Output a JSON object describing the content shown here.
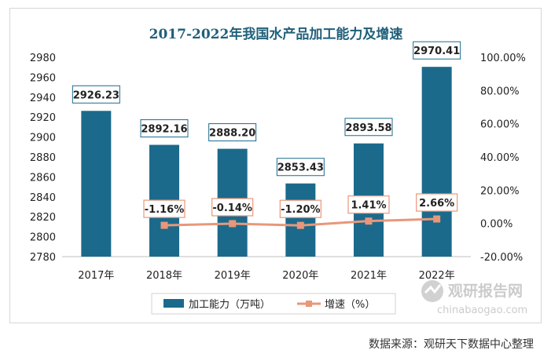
{
  "chart_data": {
    "type": "bar",
    "title": "2017-2022年我国水产品加工能力及增速",
    "categories": [
      "2017年",
      "2018年",
      "2019年",
      "2020年",
      "2021年",
      "2022年"
    ],
    "series": [
      {
        "name": "加工能力（万吨）",
        "type": "bar",
        "axis": "left",
        "values": [
          2926.23,
          2892.16,
          2888.2,
          2853.43,
          2893.58,
          2970.41
        ],
        "labels": [
          "2926.23",
          "2892.16",
          "2888.20",
          "2853.43",
          "2893.58",
          "2970.41"
        ],
        "color": "#1b6a8c"
      },
      {
        "name": "增速（%）",
        "type": "line",
        "axis": "right",
        "values": [
          null,
          -1.16,
          -0.14,
          -1.2,
          1.41,
          2.66
        ],
        "labels": [
          "",
          "-1.16%",
          "-0.14%",
          "-1.20%",
          "1.41%",
          "2.66%"
        ],
        "color": "#e8977a"
      }
    ],
    "y_left": {
      "min": 2780,
      "max": 2980,
      "step": 20,
      "ticks": [
        "2780",
        "2800",
        "2820",
        "2840",
        "2860",
        "2880",
        "2900",
        "2920",
        "2940",
        "2960",
        "2980"
      ]
    },
    "y_right": {
      "min": -20,
      "max": 100,
      "step": 20,
      "ticks": [
        "-20.00%",
        "0.00%",
        "20.00%",
        "40.00%",
        "60.00%",
        "80.00%",
        "100.00%"
      ]
    },
    "legend": {
      "position": "bottom",
      "items": [
        "加工能力（万吨）",
        "增速（%）"
      ]
    },
    "grid": false
  },
  "watermark": {
    "brand": "观研报告网",
    "url": "chinabaogao.com"
  },
  "source_note": "数据来源：观研天下数据中心整理",
  "colors": {
    "title": "#1f5f7a",
    "bar": "#1b6a8c",
    "line": "#e8977a",
    "bar_label_border": "#1b6a8c",
    "line_label_border": "#e8977a"
  }
}
